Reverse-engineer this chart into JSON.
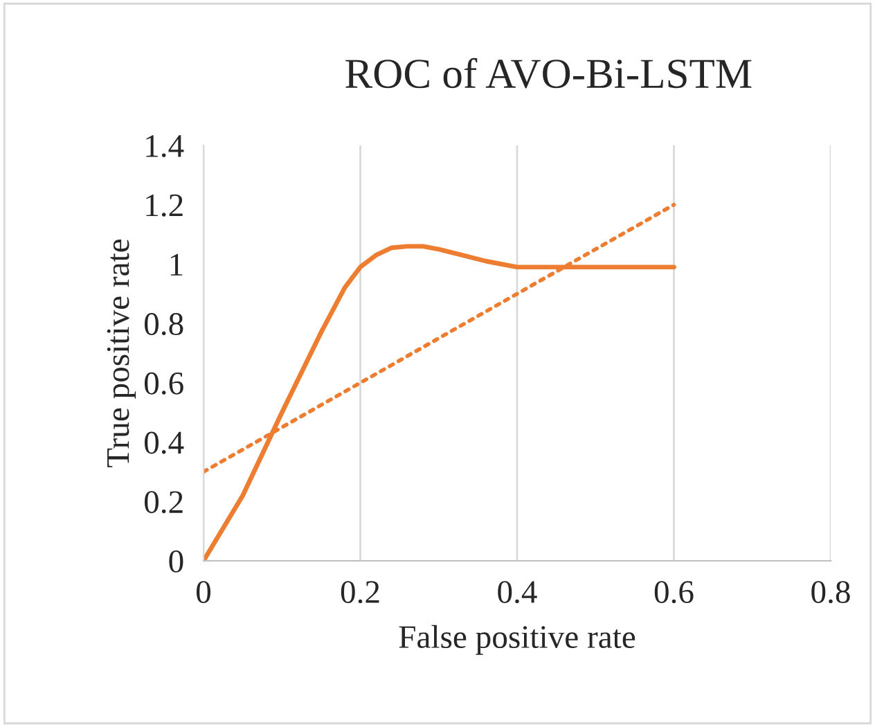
{
  "chart_data": {
    "type": "line",
    "title": "ROC of AVO-Bi-LSTM",
    "xlabel": "False positive rate",
    "ylabel": "True positive rate",
    "series": [
      {
        "color": "#ed7d31",
        "line_style": "solid",
        "x": [
          0,
          0.05,
          0.1,
          0.15,
          0.18,
          0.2,
          0.22,
          0.24,
          0.26,
          0.28,
          0.3,
          0.33,
          0.36,
          0.4,
          0.5,
          0.6
        ],
        "values": [
          0,
          0.22,
          0.5,
          0.77,
          0.92,
          0.99,
          1.03,
          1.055,
          1.06,
          1.06,
          1.05,
          1.03,
          1.01,
          0.99,
          0.99,
          0.99
        ]
      },
      {
        "color": "#ed7d31",
        "line_style": "dotted",
        "x": [
          0,
          0.6
        ],
        "values": [
          0.3,
          1.2
        ]
      }
    ],
    "xlim": [
      0,
      0.8
    ],
    "xticks": [
      0,
      0.2,
      0.4,
      0.6,
      0.8
    ],
    "ylim": [
      0,
      1.4
    ],
    "yticks": [
      0,
      0.2,
      0.4,
      0.6,
      0.8,
      1,
      1.2,
      1.4
    ],
    "grid": "x",
    "legend": false
  }
}
